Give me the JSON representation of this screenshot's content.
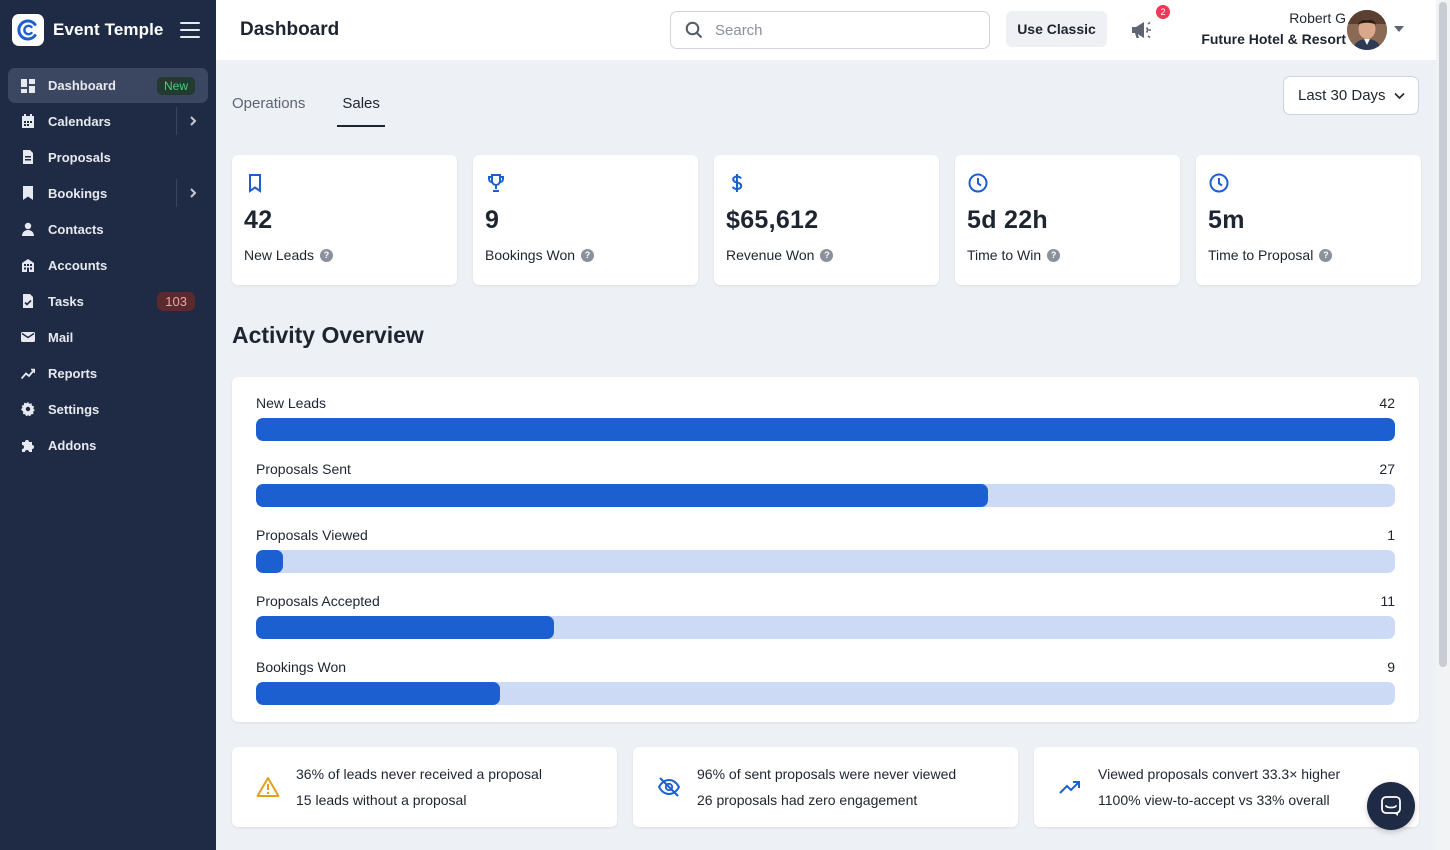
{
  "app": {
    "name": "Event Temple"
  },
  "sidebar": {
    "items": [
      {
        "label": "Dashboard",
        "icon": "dashboard-icon",
        "badge": "New",
        "active": true
      },
      {
        "label": "Calendars",
        "icon": "calendar-icon",
        "expandable": true
      },
      {
        "label": "Proposals",
        "icon": "document-icon"
      },
      {
        "label": "Bookings",
        "icon": "bookmark-icon",
        "expandable": true
      },
      {
        "label": "Contacts",
        "icon": "person-icon"
      },
      {
        "label": "Accounts",
        "icon": "building-icon"
      },
      {
        "label": "Tasks",
        "icon": "task-icon",
        "count": "103"
      },
      {
        "label": "Mail",
        "icon": "mail-icon"
      },
      {
        "label": "Reports",
        "icon": "chart-line-icon"
      },
      {
        "label": "Settings",
        "icon": "gear-icon"
      },
      {
        "label": "Addons",
        "icon": "puzzle-icon"
      }
    ]
  },
  "header": {
    "title": "Dashboard",
    "search_placeholder": "Search",
    "classic_label": "Use Classic",
    "notification_count": "2",
    "user_name": "Robert G",
    "user_org": "Future Hotel & Resort"
  },
  "tabs": [
    {
      "label": "Operations",
      "active": false
    },
    {
      "label": "Sales",
      "active": true
    }
  ],
  "range": {
    "selected": "Last 30 Days"
  },
  "kpis": [
    {
      "icon": "bookmark-icon",
      "value": "42",
      "label": "New Leads"
    },
    {
      "icon": "trophy-icon",
      "value": "9",
      "label": "Bookings Won"
    },
    {
      "icon": "dollar-icon",
      "value": "$65,612",
      "label": "Revenue Won"
    },
    {
      "icon": "clock-icon",
      "value": "5d 22h",
      "label": "Time to Win"
    },
    {
      "icon": "clock-icon",
      "value": "5m",
      "label": "Time to Proposal"
    }
  ],
  "activity": {
    "title": "Activity Overview",
    "max": 42,
    "rows": [
      {
        "label": "New Leads",
        "value": 42,
        "value_text": "42"
      },
      {
        "label": "Proposals Sent",
        "value": 27,
        "value_text": "27"
      },
      {
        "label": "Proposals Viewed",
        "value": 1,
        "value_text": "1"
      },
      {
        "label": "Proposals Accepted",
        "value": 11,
        "value_text": "11"
      },
      {
        "label": "Bookings Won",
        "value": 9,
        "value_text": "9"
      }
    ]
  },
  "insights": [
    {
      "icon": "warning-icon",
      "color": "#e2a01c",
      "line1": "36% of leads never received a proposal",
      "line2": "15 leads without a proposal"
    },
    {
      "icon": "eye-off-icon",
      "color": "#1c5fd0",
      "line1": "96% of sent proposals were never viewed",
      "line2": "26 proposals had zero engagement"
    },
    {
      "icon": "trending-up-icon",
      "color": "#1c5fd0",
      "line1": "Viewed proposals convert 33.3× higher",
      "line2": "1100% view-to-accept vs 33% overall"
    }
  ],
  "colors": {
    "accent": "#1c5fd0",
    "sidebar": "#1f2a44",
    "bar_track": "#ccdaf6"
  }
}
